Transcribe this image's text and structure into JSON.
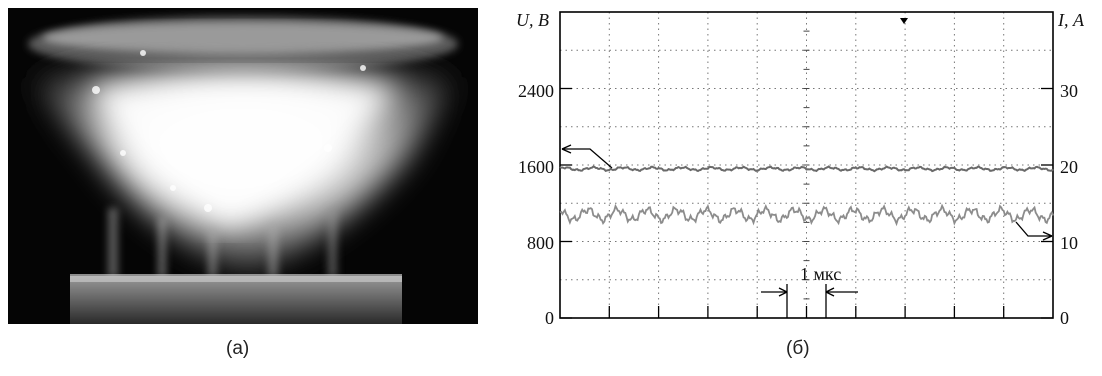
{
  "captions": {
    "a": "(a)",
    "b": "(б)"
  },
  "oscillogram": {
    "left_axis": {
      "unit_label": "U, В",
      "ticks": [
        "0",
        "800",
        "1600",
        "2400"
      ]
    },
    "right_axis": {
      "unit_label": "I, А",
      "ticks": [
        "0",
        "10",
        "20",
        "30"
      ]
    },
    "time_marker": "1 мкс"
  },
  "chart_data": {
    "type": "line",
    "title": "",
    "x_unit": "мкс",
    "x_range": [
      0,
      10
    ],
    "left_axis": {
      "label": "U, В",
      "range": [
        0,
        3200
      ],
      "ticks": [
        0,
        800,
        1600,
        2400
      ]
    },
    "right_axis": {
      "label": "I, А",
      "range": [
        0,
        40
      ],
      "ticks": [
        0,
        10,
        20,
        30
      ]
    },
    "grid": true,
    "series": [
      {
        "axis": "left",
        "level": 1560,
        "ripple": 25
      },
      {
        "axis": "right",
        "level": 13.5,
        "ripple": 1.2
      }
    ],
    "annotations": [
      {
        "text": "1 мкс",
        "x_start": 6.0,
        "x_end": 7.0
      }
    ]
  }
}
